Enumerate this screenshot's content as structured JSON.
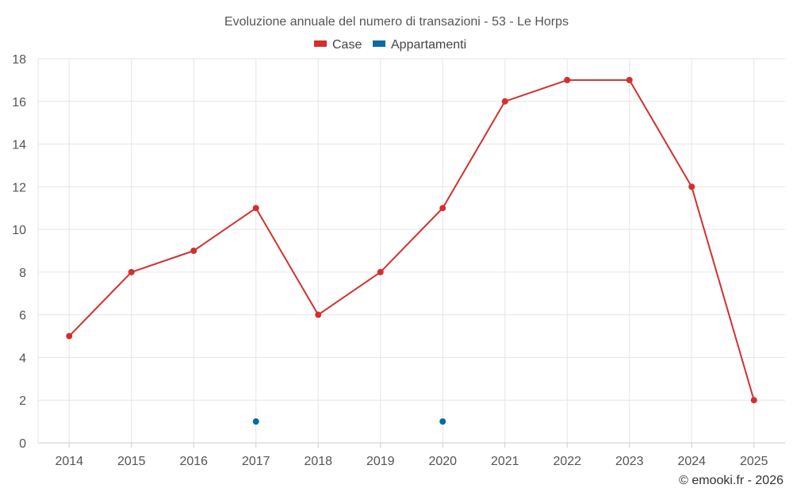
{
  "chart_data": {
    "type": "line",
    "title": "Evoluzione annuale del numero di transazioni - 53 - Le Horps",
    "categories": [
      "2014",
      "2015",
      "2016",
      "2017",
      "2018",
      "2019",
      "2020",
      "2021",
      "2022",
      "2023",
      "2024",
      "2025"
    ],
    "series": [
      {
        "name": "Case",
        "color": "#d32f2f",
        "values": [
          5,
          8,
          9,
          11,
          6,
          8,
          11,
          16,
          17,
          17,
          12,
          2
        ]
      },
      {
        "name": "Appartamenti",
        "color": "#0b6aa2",
        "values": [
          null,
          null,
          null,
          1,
          null,
          null,
          1,
          null,
          null,
          null,
          null,
          null
        ]
      }
    ],
    "ylim": [
      0,
      18
    ],
    "yticks": [
      0,
      2,
      4,
      6,
      8,
      10,
      12,
      14,
      16,
      18
    ],
    "grid": true,
    "legend_position": "top-center"
  },
  "credit": "© emooki.fr - 2026"
}
